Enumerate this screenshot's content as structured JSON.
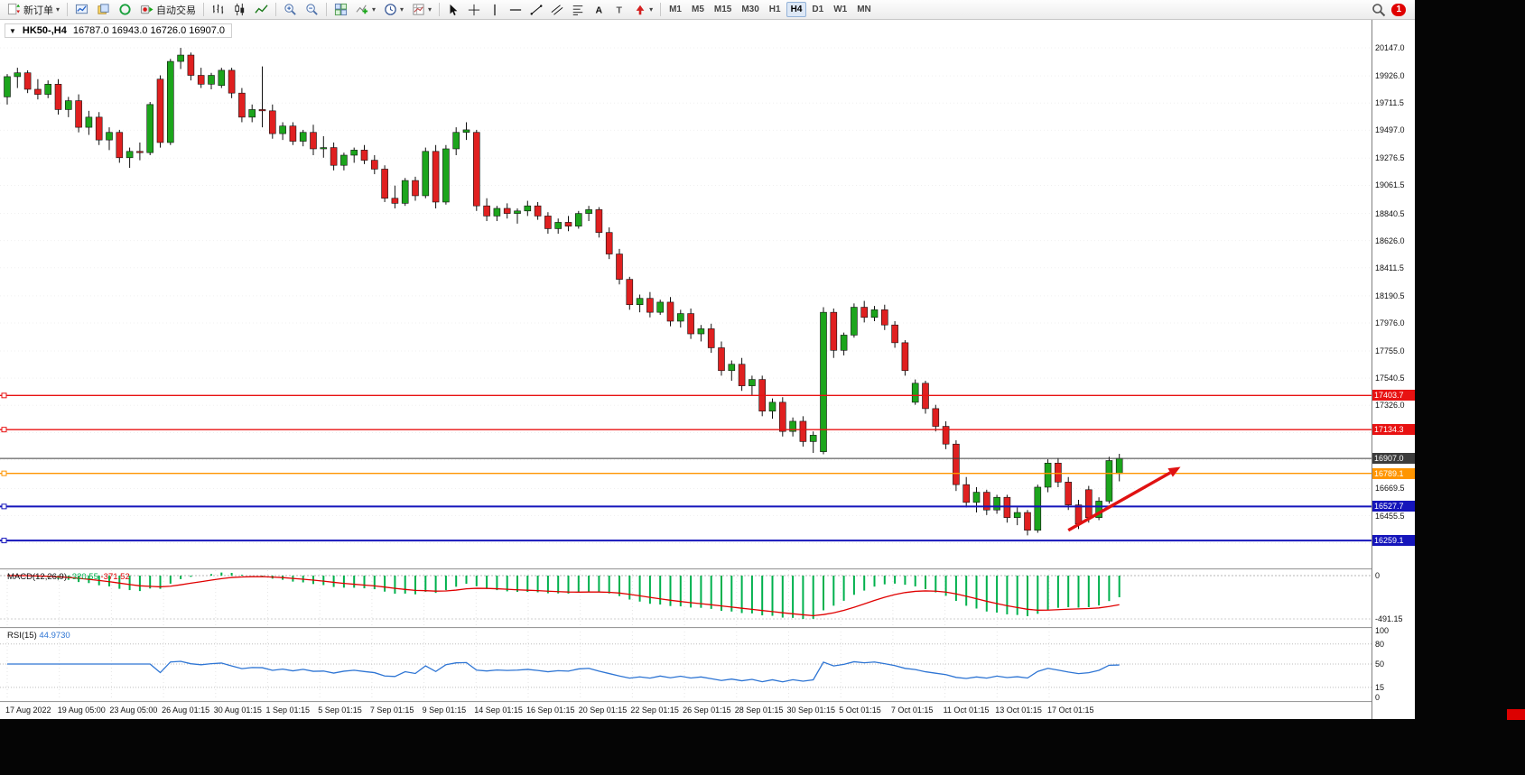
{
  "window": {
    "search_badge": "1"
  },
  "toolbar": {
    "new_order": "新订单",
    "autotrading": "自动交易",
    "timeframes": [
      "M1",
      "M5",
      "M15",
      "M30",
      "H1",
      "H4",
      "D1",
      "W1",
      "MN"
    ],
    "active_timeframe": "H4"
  },
  "chart_header": {
    "symbol_period": "HK50-,H4",
    "ohlc": "16787.0 16943.0 16726.0 16907.0"
  },
  "chart_data": {
    "type": "candlestick",
    "symbol": "HK50-",
    "timeframe": "H4",
    "current_bar": {
      "open": 16787.0,
      "high": 16943.0,
      "low": 16726.0,
      "close": 16907.0
    },
    "price_axis": {
      "min": 16039,
      "max": 20368,
      "ticks": [
        "20147.0",
        "19926.0",
        "19711.5",
        "19497.0",
        "19276.5",
        "19061.5",
        "18840.5",
        "18626.0",
        "18411.5",
        "18190.5",
        "17976.0",
        "17755.0",
        "17540.5",
        "17326.0",
        "17111.0",
        "16896.5",
        "16669.5",
        "16455.5",
        "16240.5"
      ]
    },
    "levels": [
      {
        "price": 17403.7,
        "label": "17403.7",
        "color": "#e81212",
        "width": 1.4,
        "type": "resistance"
      },
      {
        "price": 17134.3,
        "label": "17134.3",
        "color": "#e81212",
        "width": 1.4,
        "type": "resistance"
      },
      {
        "price": 16907.0,
        "label": "16907.0",
        "color": "#3c3c3c",
        "width": 1.0,
        "type": "current-price"
      },
      {
        "price": 16789.1,
        "label": "16789.1",
        "color": "#ff9500",
        "width": 1.4,
        "type": "level"
      },
      {
        "price": 16527.7,
        "label": "16527.7",
        "color": "#1515bb",
        "width": 2.0,
        "type": "support"
      },
      {
        "price": 16259.1,
        "label": "16259.1",
        "color": "#1515bb",
        "width": 2.0,
        "type": "support"
      }
    ],
    "annotation_arrow": {
      "from_bar": 104,
      "from_price": 16340,
      "to_bar": 115,
      "to_price": 16840,
      "color": "#e01212"
    },
    "time_axis": [
      "17 Aug 2022",
      "19 Aug 05:00",
      "23 Aug 05:00",
      "26 Aug 01:15",
      "30 Aug 01:15",
      "1 Sep 01:15",
      "5 Sep 01:15",
      "7 Sep 01:15",
      "9 Sep 01:15",
      "14 Sep 01:15",
      "16 Sep 01:15",
      "20 Sep 01:15",
      "22 Sep 01:15",
      "26 Sep 01:15",
      "28 Sep 01:15",
      "30 Sep 01:15",
      "5 Oct 01:15",
      "7 Oct 01:15",
      "11 Oct 01:15",
      "13 Oct 01:15",
      "17 Oct 01:15"
    ],
    "candles": [
      [
        19760,
        19940,
        19700,
        19920
      ],
      [
        19920,
        19990,
        19830,
        19950
      ],
      [
        19950,
        19970,
        19790,
        19820
      ],
      [
        19820,
        19900,
        19740,
        19780
      ],
      [
        19780,
        19890,
        19750,
        19860
      ],
      [
        19860,
        19900,
        19620,
        19660
      ],
      [
        19660,
        19760,
        19600,
        19730
      ],
      [
        19730,
        19780,
        19480,
        19520
      ],
      [
        19520,
        19650,
        19460,
        19600
      ],
      [
        19600,
        19640,
        19380,
        19420
      ],
      [
        19420,
        19520,
        19340,
        19480
      ],
      [
        19480,
        19500,
        19240,
        19280
      ],
      [
        19280,
        19360,
        19200,
        19330
      ],
      [
        19330,
        19400,
        19260,
        19320
      ],
      [
        19320,
        19720,
        19300,
        19700
      ],
      [
        19900,
        19930,
        19360,
        19400
      ],
      [
        19400,
        20060,
        19380,
        20040
      ],
      [
        20040,
        20147,
        19980,
        20090
      ],
      [
        20090,
        20110,
        19890,
        19930
      ],
      [
        19930,
        19990,
        19830,
        19860
      ],
      [
        19860,
        19950,
        19820,
        19930
      ],
      [
        19850,
        19990,
        19830,
        19970
      ],
      [
        19970,
        19990,
        19750,
        19790
      ],
      [
        19790,
        19830,
        19560,
        19600
      ],
      [
        19600,
        19700,
        19560,
        19660
      ],
      [
        19660,
        20000,
        19520,
        19650
      ],
      [
        19650,
        19700,
        19430,
        19470
      ],
      [
        19470,
        19560,
        19420,
        19530
      ],
      [
        19530,
        19560,
        19380,
        19410
      ],
      [
        19410,
        19500,
        19370,
        19480
      ],
      [
        19480,
        19540,
        19300,
        19350
      ],
      [
        19350,
        19450,
        19280,
        19360
      ],
      [
        19360,
        19400,
        19180,
        19220
      ],
      [
        19220,
        19320,
        19180,
        19300
      ],
      [
        19300,
        19360,
        19240,
        19340
      ],
      [
        19340,
        19380,
        19230,
        19260
      ],
      [
        19260,
        19300,
        19150,
        19190
      ],
      [
        19190,
        19220,
        18930,
        18960
      ],
      [
        18960,
        19060,
        18880,
        18920
      ],
      [
        18920,
        19120,
        18900,
        19100
      ],
      [
        19100,
        19130,
        18940,
        18980
      ],
      [
        18980,
        19360,
        18960,
        19330
      ],
      [
        19330,
        19380,
        18880,
        18930
      ],
      [
        18930,
        19380,
        18910,
        19350
      ],
      [
        19350,
        19520,
        19300,
        19480
      ],
      [
        19480,
        19560,
        19420,
        19500
      ],
      [
        19480,
        19500,
        18860,
        18900
      ],
      [
        18900,
        18960,
        18780,
        18820
      ],
      [
        18820,
        18900,
        18780,
        18880
      ],
      [
        18880,
        18920,
        18800,
        18840
      ],
      [
        18840,
        18880,
        18760,
        18860
      ],
      [
        18860,
        18940,
        18820,
        18900
      ],
      [
        18900,
        18930,
        18790,
        18820
      ],
      [
        18820,
        18850,
        18680,
        18720
      ],
      [
        18720,
        18800,
        18680,
        18770
      ],
      [
        18770,
        18820,
        18700,
        18740
      ],
      [
        18740,
        18860,
        18720,
        18840
      ],
      [
        18840,
        18900,
        18780,
        18870
      ],
      [
        18870,
        18890,
        18650,
        18690
      ],
      [
        18690,
        18730,
        18480,
        18520
      ],
      [
        18520,
        18560,
        18280,
        18320
      ],
      [
        18320,
        18340,
        18080,
        18120
      ],
      [
        18120,
        18200,
        18060,
        18170
      ],
      [
        18170,
        18220,
        18020,
        18060
      ],
      [
        18060,
        18160,
        18040,
        18140
      ],
      [
        18140,
        18180,
        17950,
        17990
      ],
      [
        17990,
        18080,
        17940,
        18050
      ],
      [
        18050,
        18090,
        17850,
        17890
      ],
      [
        17890,
        17960,
        17830,
        17930
      ],
      [
        17930,
        17970,
        17740,
        17780
      ],
      [
        17780,
        17830,
        17560,
        17600
      ],
      [
        17600,
        17680,
        17520,
        17650
      ],
      [
        17650,
        17700,
        17440,
        17480
      ],
      [
        17480,
        17560,
        17400,
        17530
      ],
      [
        17530,
        17560,
        17240,
        17280
      ],
      [
        17280,
        17380,
        17220,
        17350
      ],
      [
        17350,
        17390,
        17080,
        17120
      ],
      [
        17120,
        17230,
        17080,
        17200
      ],
      [
        17200,
        17240,
        17000,
        17040
      ],
      [
        17040,
        17120,
        16950,
        17090
      ],
      [
        16960,
        18100,
        16940,
        18060
      ],
      [
        18060,
        18090,
        17700,
        17760
      ],
      [
        17760,
        17900,
        17720,
        17880
      ],
      [
        17880,
        18130,
        17860,
        18100
      ],
      [
        18100,
        18150,
        17980,
        18020
      ],
      [
        18020,
        18110,
        17990,
        18080
      ],
      [
        18080,
        18120,
        17920,
        17960
      ],
      [
        17960,
        17990,
        17780,
        17820
      ],
      [
        17820,
        17840,
        17560,
        17600
      ],
      [
        17350,
        17530,
        17330,
        17500
      ],
      [
        17500,
        17520,
        17260,
        17300
      ],
      [
        17300,
        17330,
        17120,
        17160
      ],
      [
        17160,
        17200,
        16980,
        17020
      ],
      [
        17020,
        17050,
        16650,
        16700
      ],
      [
        16700,
        16760,
        16520,
        16560
      ],
      [
        16560,
        16680,
        16480,
        16640
      ],
      [
        16640,
        16660,
        16460,
        16500
      ],
      [
        16500,
        16620,
        16470,
        16600
      ],
      [
        16600,
        16620,
        16400,
        16440
      ],
      [
        16440,
        16520,
        16380,
        16480
      ],
      [
        16480,
        16500,
        16300,
        16340
      ],
      [
        16340,
        16700,
        16320,
        16680
      ],
      [
        16680,
        16900,
        16640,
        16870
      ],
      [
        16870,
        16910,
        16680,
        16720
      ],
      [
        16720,
        16760,
        16500,
        16540
      ],
      [
        16540,
        16580,
        16350,
        16390
      ],
      [
        16660,
        16690,
        16400,
        16440
      ],
      [
        16440,
        16600,
        16420,
        16570
      ],
      [
        16570,
        16920,
        16550,
        16890
      ],
      [
        16787,
        16943,
        16726,
        16907
      ]
    ]
  },
  "macd": {
    "title": "MACD(12,26,9)",
    "main_value": "-320.55",
    "signal_value": "-371.52",
    "params": {
      "fast": 12,
      "slow": 26,
      "signal": 9
    },
    "axis": {
      "zero": "0",
      "min": "-491.15"
    },
    "colors": {
      "histogram": "#00b14d",
      "signal": "#e00000"
    }
  },
  "rsi": {
    "title": "RSI(15)",
    "value": "44.9730",
    "period": 15,
    "axis_ticks": [
      "100",
      "80",
      "50",
      "15",
      "0"
    ],
    "levels": [
      80,
      50,
      15
    ],
    "color": "#2e75d4"
  }
}
